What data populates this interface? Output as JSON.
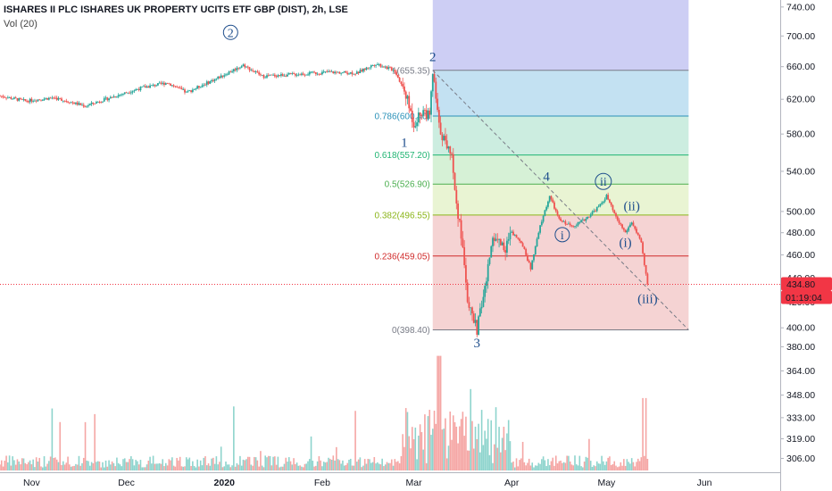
{
  "header": {
    "title": "ISHARES II PLC ISHARES UK PROPERTY UCITS ETF GBP (DIST), 2h, LSE",
    "volume_indicator": "Vol (20)"
  },
  "chart_data": {
    "type": "candlestick",
    "price_axis": {
      "ticks": [
        400,
        420,
        440,
        460,
        480,
        500,
        540,
        580,
        620,
        660,
        700,
        740
      ],
      "tick_labels": [
        "400.00",
        "420.00",
        "440.00",
        "460.00",
        "480.00",
        "500.00",
        "540.00",
        "580.00",
        "620.00",
        "660.00",
        "700.00",
        "740.00"
      ],
      "scale": "log",
      "range": [
        392,
        750
      ]
    },
    "volume_axis": {
      "ticks": [
        306,
        319,
        333,
        348,
        364,
        380
      ],
      "tick_labels": [
        "306.00",
        "319.00",
        "333.00",
        "348.00",
        "364.00",
        "380.00"
      ]
    },
    "time_axis": {
      "labels": [
        "Nov",
        "Dec",
        "2020",
        "Feb",
        "Mar",
        "Apr",
        "May",
        "Jun"
      ],
      "dates": [
        "2019-11-01",
        "2019-12-01",
        "2020-01-01",
        "2020-02-01",
        "2020-03-01",
        "2020-04-01",
        "2020-05-01",
        "2020-06-01"
      ],
      "range": [
        "2019-10-22",
        "2020-06-25"
      ]
    },
    "price_path": [
      [
        "2019-10-22",
        624
      ],
      [
        "2019-10-30",
        618
      ],
      [
        "2019-11-08",
        622
      ],
      [
        "2019-11-18",
        612
      ],
      [
        "2019-11-26",
        622
      ],
      [
        "2019-12-06",
        634
      ],
      [
        "2019-12-14",
        640
      ],
      [
        "2019-12-20",
        628
      ],
      [
        "2019-12-30",
        646
      ],
      [
        "2020-01-07",
        662
      ],
      [
        "2020-01-13",
        648
      ],
      [
        "2020-01-22",
        650
      ],
      [
        "2020-02-03",
        653
      ],
      [
        "2020-02-12",
        652
      ],
      [
        "2020-02-18",
        664
      ],
      [
        "2020-02-24",
        655
      ],
      [
        "2020-02-27",
        630
      ],
      [
        "2020-03-01",
        592
      ],
      [
        "2020-03-04",
        608
      ],
      [
        "2020-03-06",
        598
      ],
      [
        "2020-03-07",
        652
      ],
      [
        "2020-03-09",
        588
      ],
      [
        "2020-03-11",
        570
      ],
      [
        "2020-03-13",
        560
      ],
      [
        "2020-03-14",
        520
      ],
      [
        "2020-03-17",
        455
      ],
      [
        "2020-03-18",
        424
      ],
      [
        "2020-03-19",
        412
      ],
      [
        "2020-03-21",
        398.4
      ],
      [
        "2020-03-24",
        438
      ],
      [
        "2020-03-26",
        478
      ],
      [
        "2020-03-30",
        466
      ],
      [
        "2020-04-01",
        480
      ],
      [
        "2020-04-04",
        472
      ],
      [
        "2020-04-07",
        448
      ],
      [
        "2020-04-10",
        486
      ],
      [
        "2020-04-13",
        515
      ],
      [
        "2020-04-16",
        492
      ],
      [
        "2020-04-20",
        486
      ],
      [
        "2020-04-24",
        492
      ],
      [
        "2020-04-29",
        506
      ],
      [
        "2020-05-01",
        515
      ],
      [
        "2020-05-04",
        494
      ],
      [
        "2020-05-07",
        480
      ],
      [
        "2020-05-09",
        490
      ],
      [
        "2020-05-12",
        470
      ],
      [
        "2020-05-14",
        434.8
      ]
    ],
    "last_price": {
      "value": 434.8,
      "label": "434.80",
      "countdown": "01:19:04",
      "color": "#f23645"
    },
    "fibonacci": {
      "range": [
        "2020-03-07",
        "2020-05-27"
      ],
      "levels": [
        {
          "ratio": 1,
          "price": 655.35,
          "label": "1(655.35)",
          "color": "#787b86",
          "zone_fill": "#cfcfd8"
        },
        {
          "ratio": 0.786,
          "price": 600.4,
          "label": "0.786(600.40)",
          "color": "#2a91b8",
          "zone_fill": "#a9d4ec"
        },
        {
          "ratio": 0.618,
          "price": 557.2,
          "label": "0.618(557.20)",
          "color": "#21b573",
          "zone_fill": "#b6e6d3"
        },
        {
          "ratio": 0.5,
          "price": 526.9,
          "label": "0.5(526.90)",
          "color": "#4caf50",
          "zone_fill": "#c4ebc4"
        },
        {
          "ratio": 0.382,
          "price": 496.55,
          "label": "0.382(496.55)",
          "color": "#8bb51a",
          "zone_fill": "#dff0c0"
        },
        {
          "ratio": 0.236,
          "price": 459.05,
          "label": "0.236(459.05)",
          "color": "#d02b2b",
          "zone_fill": "#f1c0c0"
        },
        {
          "ratio": 0,
          "price": 398.4,
          "label": "0(398.40)",
          "color": "#787b86",
          "zone_fill": "#f1c0c0"
        }
      ],
      "extension_fill": "#bcbef0"
    },
    "trend_line": {
      "from": [
        "2020-03-07",
        655.35
      ],
      "to": [
        "2020-05-27",
        398.4
      ]
    },
    "wave_labels": [
      {
        "text": "2",
        "circled": true,
        "date": "2020-01-03",
        "price": 700
      },
      {
        "text": "2",
        "circled": false,
        "date": "2020-03-07",
        "price": 668
      },
      {
        "text": "1",
        "circled": false,
        "date": "2020-02-27",
        "price": 567
      },
      {
        "text": "3",
        "circled": false,
        "date": "2020-03-21",
        "price": 386
      },
      {
        "text": "4",
        "circled": false,
        "date": "2020-04-12",
        "price": 531
      },
      {
        "text": "i",
        "circled": true,
        "date": "2020-04-17",
        "price": 475
      },
      {
        "text": "ii",
        "circled": true,
        "date": "2020-04-30",
        "price": 526
      },
      {
        "text": "(ii)",
        "circled": false,
        "date": "2020-05-09",
        "price": 502
      },
      {
        "text": "(i)",
        "circled": false,
        "date": "2020-05-07",
        "price": 468
      },
      {
        "text": "(iii)",
        "circled": false,
        "date": "2020-05-14",
        "price": 420
      }
    ],
    "colors": {
      "up": "#26a69a",
      "down": "#ef5350",
      "vol_up": "#8ed4cd",
      "vol_down": "#f5a6a4"
    }
  }
}
